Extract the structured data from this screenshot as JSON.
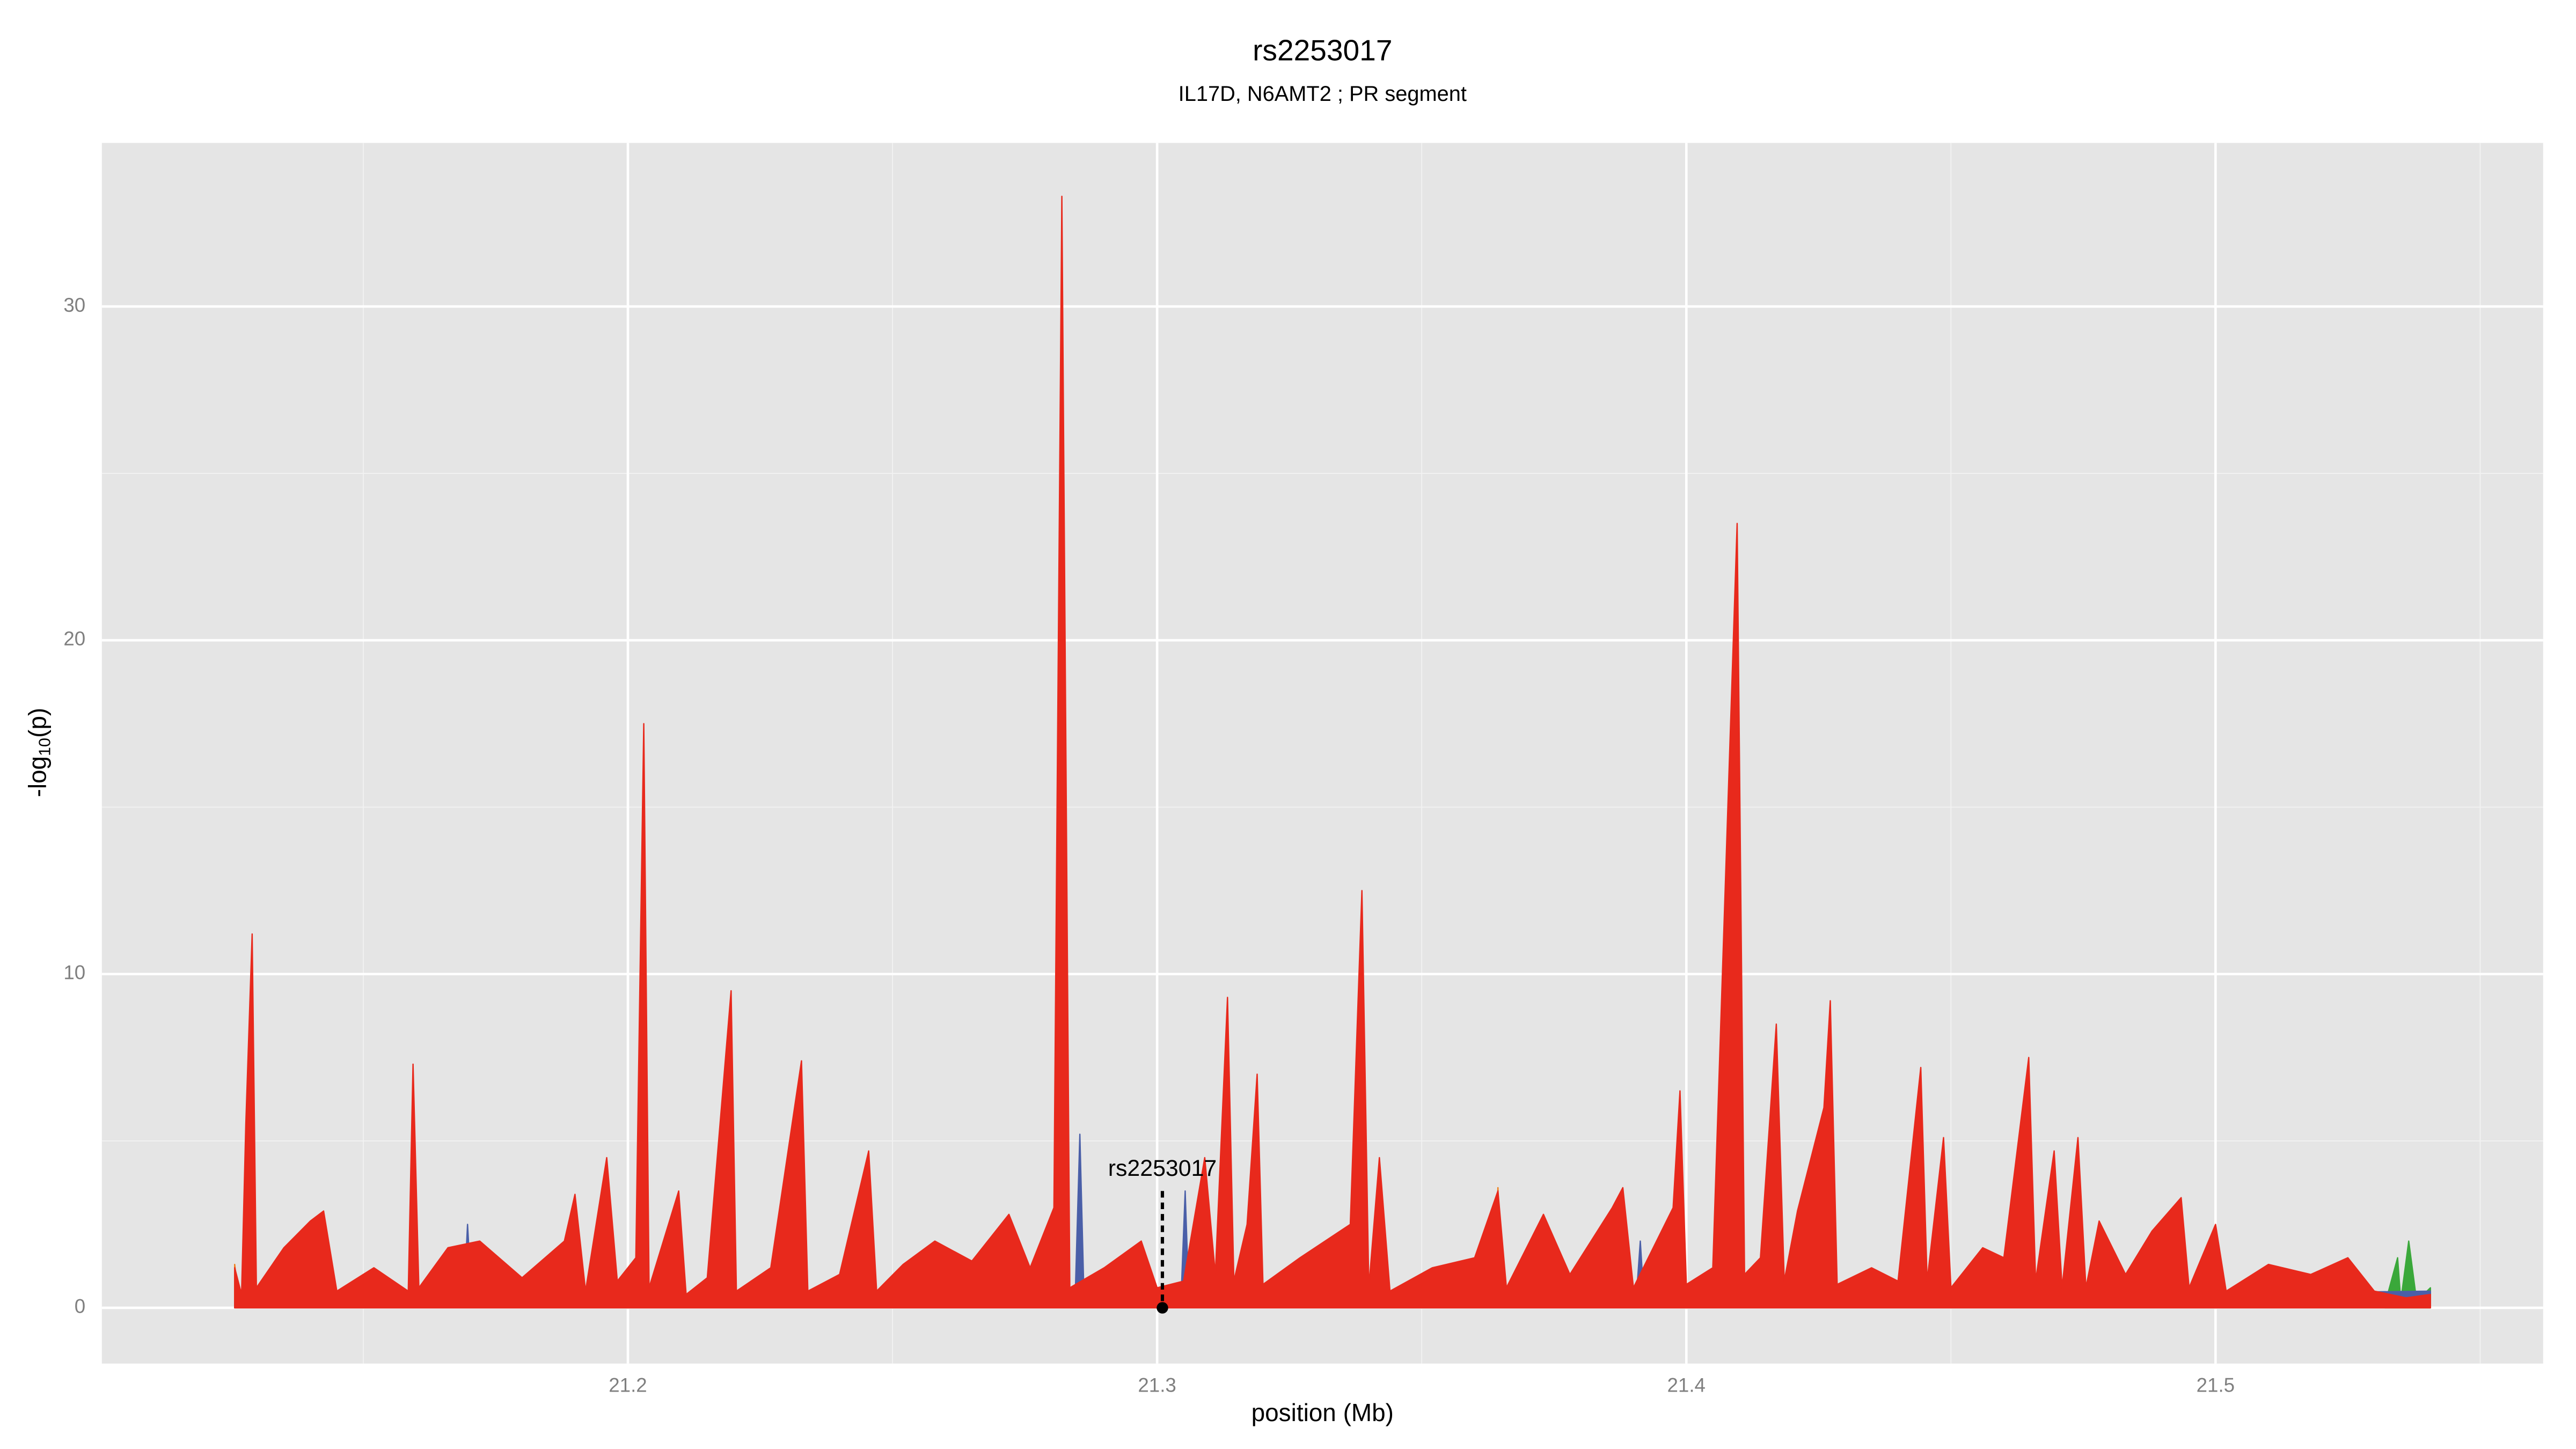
{
  "chart_data": {
    "type": "area",
    "title": "rs2253017",
    "subtitle": "IL17D, N6AMT2 ; PR segment",
    "x_label": "position (Mb)",
    "y_label": [
      "-log",
      "10",
      "(p)"
    ],
    "xlim": [
      21.1006,
      21.5619
    ],
    "ylim": [
      -1.67,
      34.9
    ],
    "xticks": [
      21.2,
      21.3,
      21.4,
      21.5
    ],
    "x_minor_ticks": [
      21.15,
      21.25,
      21.35,
      21.45,
      21.55
    ],
    "yticks": [
      0,
      10,
      20,
      30
    ],
    "y_minor_ticks": [
      5,
      15,
      25
    ],
    "grid": true,
    "annotation": {
      "text": "rs2253017",
      "x": 21.301,
      "y": 3.5
    },
    "series": [
      {
        "color": "#3aa83a",
        "x": [
          21.532,
          21.5344,
          21.535,
          21.5365,
          21.538,
          21.5406
        ],
        "values": [
          0.1,
          1.5,
          0.2,
          2.0,
          0.2,
          0.6
        ]
      },
      {
        "color": "#f07f1a",
        "x": [
          21.1257,
          21.1265,
          21.364,
          21.3644,
          21.365,
          21.5406
        ],
        "values": [
          1.3,
          0.2,
          0.2,
          3.6,
          0.2,
          0.3
        ]
      },
      {
        "color": "#4a5fa8",
        "x": [
          21.1257,
          21.169,
          21.1697,
          21.1705,
          21.2845,
          21.2854,
          21.2862,
          21.3045,
          21.3053,
          21.306,
          21.3905,
          21.3913,
          21.392,
          21.5406
        ],
        "values": [
          0.2,
          0.2,
          2.5,
          0.2,
          0.2,
          5.2,
          0.2,
          0.2,
          3.5,
          0.2,
          0.2,
          2.0,
          0.2,
          0.5
        ]
      },
      {
        "color": "#e8291c",
        "x": [
          21.1257,
          21.127,
          21.1278,
          21.129,
          21.1298,
          21.135,
          21.14,
          21.1425,
          21.145,
          21.152,
          21.1585,
          21.1594,
          21.1605,
          21.166,
          21.172,
          21.18,
          21.188,
          21.19,
          21.192,
          21.195,
          21.196,
          21.198,
          21.2015,
          21.203,
          21.204,
          21.2096,
          21.211,
          21.215,
          21.2195,
          21.2205,
          21.227,
          21.2328,
          21.234,
          21.24,
          21.2455,
          21.247,
          21.252,
          21.258,
          21.265,
          21.272,
          21.276,
          21.2805,
          21.282,
          21.2835,
          21.29,
          21.297,
          21.3,
          21.305,
          21.309,
          21.311,
          21.3133,
          21.3145,
          21.317,
          21.3189,
          21.32,
          21.327,
          21.3365,
          21.3387,
          21.34,
          21.342,
          21.344,
          21.352,
          21.36,
          21.3644,
          21.366,
          21.373,
          21.378,
          21.386,
          21.388,
          21.39,
          21.3975,
          21.3988,
          21.4,
          21.405,
          21.4096,
          21.411,
          21.414,
          21.417,
          21.4185,
          21.421,
          21.426,
          21.4272,
          21.4285,
          21.435,
          21.44,
          21.4443,
          21.4455,
          21.4486,
          21.45,
          21.456,
          21.46,
          21.4647,
          21.466,
          21.4695,
          21.471,
          21.474,
          21.4755,
          21.478,
          21.483,
          21.488,
          21.4935,
          21.495,
          21.5,
          21.502,
          21.51,
          21.518,
          21.525,
          21.53,
          21.536,
          21.5406
        ],
        "values": [
          1.2,
          0.4,
          5.5,
          11.2,
          0.6,
          1.8,
          2.6,
          2.9,
          0.5,
          1.2,
          0.5,
          7.3,
          0.6,
          1.8,
          2.0,
          0.9,
          2.0,
          3.4,
          0.5,
          3.5,
          4.5,
          0.8,
          1.5,
          17.5,
          0.6,
          3.5,
          0.4,
          0.9,
          9.5,
          0.5,
          1.2,
          7.4,
          0.5,
          1.0,
          4.7,
          0.5,
          1.3,
          2.0,
          1.4,
          2.8,
          1.2,
          3.0,
          33.3,
          0.6,
          1.2,
          2.0,
          0.6,
          0.8,
          4.5,
          1.0,
          9.3,
          0.8,
          2.5,
          7.0,
          0.7,
          1.5,
          2.5,
          12.5,
          0.6,
          4.5,
          0.5,
          1.2,
          1.5,
          3.5,
          0.6,
          2.8,
          1.0,
          3.0,
          3.6,
          0.6,
          3.0,
          6.5,
          0.7,
          1.2,
          23.5,
          1.0,
          1.5,
          8.5,
          0.8,
          2.9,
          6.0,
          9.2,
          0.7,
          1.2,
          0.8,
          7.2,
          0.8,
          5.1,
          0.6,
          1.8,
          1.5,
          7.5,
          0.8,
          4.7,
          0.6,
          5.1,
          0.6,
          2.6,
          1.0,
          2.3,
          3.3,
          0.6,
          2.5,
          0.5,
          1.3,
          1.0,
          1.5,
          0.5,
          0.3,
          0.4
        ]
      }
    ]
  }
}
